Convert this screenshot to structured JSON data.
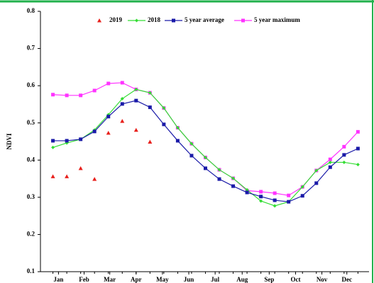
{
  "chart_data": {
    "type": "line",
    "y_label": "NDVI",
    "x": [
      1,
      2,
      3,
      4,
      5,
      6,
      7,
      8,
      9,
      10,
      11,
      12,
      13,
      14,
      15,
      16,
      17,
      18,
      19,
      20,
      21,
      22,
      23
    ],
    "xlim": [
      0.1,
      23.8
    ],
    "xticks": [
      {
        "value": 1.4,
        "label": "Jan"
      },
      {
        "value": 3.25,
        "label": "Feb"
      },
      {
        "value": 5.1,
        "label": "Mar"
      },
      {
        "value": 7.0,
        "label": "Apr"
      },
      {
        "value": 8.9,
        "label": "May"
      },
      {
        "value": 10.8,
        "label": "Jun"
      },
      {
        "value": 12.7,
        "label": "Jul"
      },
      {
        "value": 14.65,
        "label": "Aug"
      },
      {
        "value": 16.6,
        "label": "Sep"
      },
      {
        "value": 18.5,
        "label": "Oct"
      },
      {
        "value": 20.4,
        "label": "Nov"
      },
      {
        "value": 22.2,
        "label": "Dec"
      }
    ],
    "ylim": [
      0.1,
      0.8
    ],
    "yticks": [
      0.1,
      0.2,
      0.3,
      0.4,
      0.5,
      0.6,
      0.7,
      0.8
    ],
    "series": [
      {
        "name": "2019",
        "color": "#e8201c",
        "marker": "triangle",
        "line": false,
        "values": [
          0.356,
          0.356,
          0.378,
          0.349,
          0.473,
          0.505,
          0.481,
          0.449,
          null,
          null,
          null,
          null,
          null,
          null,
          null,
          null,
          null,
          null,
          null,
          null,
          null,
          null,
          null
        ]
      },
      {
        "name": "2018",
        "color": "#33dd33",
        "marker": "diamond",
        "line": true,
        "values": [
          0.434,
          0.446,
          0.456,
          0.481,
          0.522,
          0.565,
          0.59,
          0.581,
          0.54,
          0.487,
          0.444,
          0.407,
          0.374,
          0.351,
          0.32,
          0.29,
          0.277,
          0.288,
          0.328,
          0.372,
          0.394,
          0.394,
          0.388
        ]
      },
      {
        "name": "5 year average",
        "color": "#1a1aa8",
        "marker": "square",
        "line": true,
        "values": [
          0.452,
          0.452,
          0.456,
          0.477,
          0.517,
          0.551,
          0.56,
          0.542,
          0.496,
          0.452,
          0.412,
          0.378,
          0.349,
          0.33,
          0.313,
          0.302,
          0.292,
          0.288,
          0.304,
          0.338,
          0.381,
          0.414,
          0.431
        ]
      },
      {
        "name": "5 year maximum",
        "color": "#ff33ff",
        "marker": "square",
        "line": true,
        "values": [
          0.576,
          0.574,
          0.574,
          0.587,
          0.606,
          0.608,
          0.59,
          0.581,
          0.54,
          0.487,
          0.444,
          0.407,
          0.374,
          0.351,
          0.318,
          0.315,
          0.311,
          0.305,
          0.328,
          0.372,
          0.402,
          0.436,
          0.476
        ]
      }
    ],
    "legend": "top"
  }
}
